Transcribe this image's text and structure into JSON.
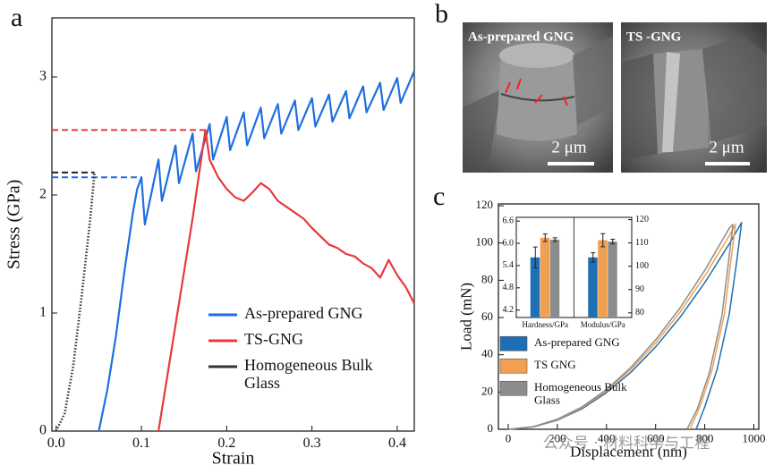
{
  "panel_labels": [
    "a",
    "b",
    "c"
  ],
  "chart_data": [
    {
      "type": "line",
      "xlabel": "Strain",
      "ylabel": "Stress (GPa)",
      "xlim": [
        -0.005,
        0.42
      ],
      "ylim": [
        0,
        3.5
      ],
      "xticks": [
        {
          "value": 0,
          "label": "0.0"
        },
        0.1,
        0.2,
        0.3,
        0.4
      ],
      "yticks": [
        0,
        1,
        2,
        3
      ],
      "legend": "lower right",
      "series": [
        {
          "name": "As-prepared GNG",
          "color": "#1f6fe0",
          "x": [
            0.05,
            0.06,
            0.07,
            0.08,
            0.09,
            0.095,
            0.1,
            0.104,
            0.12,
            0.124,
            0.14,
            0.144,
            0.16,
            0.164,
            0.18,
            0.184,
            0.2,
            0.204,
            0.22,
            0.224,
            0.24,
            0.244,
            0.26,
            0.264,
            0.28,
            0.284,
            0.3,
            0.304,
            0.32,
            0.324,
            0.34,
            0.344,
            0.36,
            0.364,
            0.38,
            0.384,
            0.4,
            0.404,
            0.42
          ],
          "values": [
            0,
            0.35,
            0.8,
            1.35,
            1.85,
            2.05,
            2.15,
            1.75,
            2.3,
            1.95,
            2.42,
            2.1,
            2.52,
            2.2,
            2.6,
            2.3,
            2.66,
            2.38,
            2.7,
            2.42,
            2.74,
            2.48,
            2.77,
            2.52,
            2.8,
            2.55,
            2.82,
            2.58,
            2.85,
            2.62,
            2.88,
            2.65,
            2.92,
            2.7,
            2.95,
            2.72,
            2.99,
            2.78,
            3.05
          ]
        },
        {
          "name": "TS-GNG",
          "color": "#e8383d",
          "x": [
            0.12,
            0.13,
            0.14,
            0.15,
            0.16,
            0.17,
            0.175,
            0.18,
            0.19,
            0.2,
            0.21,
            0.22,
            0.23,
            0.24,
            0.25,
            0.26,
            0.27,
            0.28,
            0.29,
            0.3,
            0.31,
            0.32,
            0.33,
            0.34,
            0.35,
            0.36,
            0.37,
            0.38,
            0.39,
            0.4,
            0.41,
            0.42
          ],
          "values": [
            0,
            0.45,
            0.9,
            1.35,
            1.8,
            2.3,
            2.55,
            2.3,
            2.15,
            2.05,
            1.98,
            1.95,
            2.02,
            2.1,
            2.05,
            1.95,
            1.9,
            1.85,
            1.8,
            1.72,
            1.65,
            1.58,
            1.55,
            1.5,
            1.48,
            1.42,
            1.38,
            1.3,
            1.45,
            1.32,
            1.22,
            1.08
          ]
        },
        {
          "name": "Homogeneous Bulk Glass",
          "color": "#333333",
          "style": "dotted",
          "x": [
            0,
            0.01,
            0.02,
            0.03,
            0.04,
            0.045
          ],
          "values": [
            0,
            0.15,
            0.55,
            1.15,
            1.8,
            2.19
          ]
        }
      ],
      "reference_lines": [
        {
          "y": 2.19,
          "x_end": 0.045,
          "color": "#222222"
        },
        {
          "y": 2.15,
          "x_end": 0.1,
          "color": "#1f6fe0"
        },
        {
          "y": 2.55,
          "x_end": 0.175,
          "color": "#e8383d"
        }
      ]
    },
    {
      "type": "line",
      "xlabel": "Displacement (nm)",
      "ylabel": "Load (mN)",
      "xlim": [
        -40,
        1020
      ],
      "ylim": [
        0,
        121
      ],
      "xticks": [
        0,
        200,
        400,
        600,
        800,
        1000
      ],
      "yticks": [
        0,
        20,
        40,
        60,
        80,
        100,
        120
      ],
      "legend": "center left",
      "legend_marker": "box",
      "series": [
        {
          "name": "As-prepared GNG",
          "color": "#1f6fb4",
          "x": [
            0,
            100,
            200,
            300,
            400,
            500,
            600,
            700,
            800,
            900,
            950,
            930,
            900,
            850,
            800,
            765
          ],
          "values": [
            0,
            1.2,
            4.9,
            11,
            19.7,
            30.7,
            44.2,
            60.2,
            78.7,
            99.6,
            111,
            90,
            62,
            32,
            12,
            0
          ]
        },
        {
          "name": "TS GNG",
          "color": "#f0a050",
          "x": [
            0,
            100,
            200,
            300,
            400,
            500,
            600,
            700,
            800,
            900,
            925,
            905,
            880,
            830,
            780,
            740
          ],
          "values": [
            0,
            1.3,
            5.2,
            11.6,
            20.6,
            32.2,
            46.3,
            63,
            82.3,
            104,
            110,
            89,
            62,
            32,
            12,
            0
          ]
        },
        {
          "name": "Homogeneous Bulk Glass",
          "color": "#8c8c8c",
          "x": [
            0,
            100,
            200,
            300,
            400,
            500,
            600,
            700,
            800,
            900,
            915,
            895,
            870,
            820,
            770,
            728
          ],
          "values": [
            0,
            1.35,
            5.4,
            12,
            21.3,
            33.3,
            48,
            65.3,
            85.3,
            108,
            110,
            88,
            61,
            31,
            11,
            0
          ]
        }
      ]
    },
    {
      "type": "bar",
      "categories": [
        "Hardness/GPa",
        "Modulus/GPa"
      ],
      "category_axes": [
        "y",
        "y2"
      ],
      "ylim": [
        4.0,
        6.7
      ],
      "yticks": [
        4.2,
        4.8,
        5.4,
        {
          "value": 6,
          "label": "6.0"
        },
        6.6
      ],
      "y2lim": [
        78,
        121
      ],
      "y2ticks": [
        80,
        90,
        100,
        110,
        120
      ],
      "series": [
        {
          "color": "#1f6fb4",
          "values": [
            5.62,
            103.8
          ],
          "errors": [
            0.28,
            2
          ]
        },
        {
          "color": "#f0a050",
          "values": [
            6.15,
            111.2
          ],
          "errors": [
            0.1,
            2.8
          ]
        },
        {
          "color": "#8c8c8c",
          "values": [
            6.1,
            110.6
          ],
          "errors": [
            0.05,
            1
          ]
        }
      ]
    }
  ],
  "images": [
    {
      "label": "As-prepared GNG",
      "scale_bar": "2 μm"
    },
    {
      "label": "TS -GNG",
      "scale_bar": "2 μm"
    }
  ],
  "watermark": "公众号 · 材料科学与工程"
}
